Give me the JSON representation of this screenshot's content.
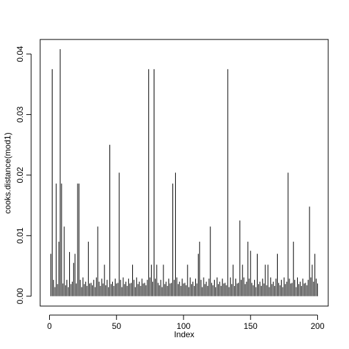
{
  "chart_data": {
    "type": "bar",
    "x_label": "Index",
    "y_label": "cooks.distance(mod1)",
    "color": "#000000",
    "x": [
      1,
      2,
      3,
      4,
      5,
      6,
      7,
      8,
      9,
      10,
      11,
      12,
      13,
      14,
      15,
      16,
      17,
      18,
      19,
      20,
      21,
      22,
      23,
      24,
      25,
      26,
      27,
      28,
      29,
      30,
      31,
      32,
      33,
      34,
      35,
      36,
      37,
      38,
      39,
      40,
      41,
      42,
      43,
      44,
      45,
      46,
      47,
      48,
      49,
      50,
      51,
      52,
      53,
      54,
      55,
      56,
      57,
      58,
      59,
      60,
      61,
      62,
      63,
      64,
      65,
      66,
      67,
      68,
      69,
      70,
      71,
      72,
      73,
      74,
      75,
      76,
      77,
      78,
      79,
      80,
      81,
      82,
      83,
      84,
      85,
      86,
      87,
      88,
      89,
      90,
      91,
      92,
      93,
      94,
      95,
      96,
      97,
      98,
      99,
      100,
      101,
      102,
      103,
      104,
      105,
      106,
      107,
      108,
      109,
      110,
      111,
      112,
      113,
      114,
      115,
      116,
      117,
      118,
      119,
      120,
      121,
      122,
      123,
      124,
      125,
      126,
      127,
      128,
      129,
      130,
      131,
      132,
      133,
      134,
      135,
      136,
      137,
      138,
      139,
      140,
      141,
      142,
      143,
      144,
      145,
      146,
      147,
      148,
      149,
      150,
      151,
      152,
      153,
      154,
      155,
      156,
      157,
      158,
      159,
      160,
      161,
      162,
      163,
      164,
      165,
      166,
      167,
      168,
      169,
      170,
      171,
      172,
      173,
      174,
      175,
      176,
      177,
      178,
      179,
      180,
      181,
      182,
      183,
      184,
      185,
      186,
      187,
      188,
      189,
      190,
      191,
      192,
      193,
      194,
      195,
      196,
      197,
      198,
      199,
      200
    ],
    "values": [
      0.007,
      0.0375,
      0.0027,
      0.0015,
      0.0186,
      0.002,
      0.009,
      0.0408,
      0.0186,
      0.0021,
      0.0115,
      0.0018,
      0.0027,
      0.0015,
      0.0073,
      0.002,
      0.0024,
      0.0055,
      0.007,
      0.0021,
      0.0186,
      0.0186,
      0.0027,
      0.0015,
      0.0031,
      0.002,
      0.0024,
      0.0017,
      0.009,
      0.0021,
      0.0022,
      0.0018,
      0.0027,
      0.0015,
      0.0031,
      0.0115,
      0.0024,
      0.0017,
      0.0029,
      0.0021,
      0.0052,
      0.0018,
      0.0027,
      0.0015,
      0.025,
      0.002,
      0.0024,
      0.0017,
      0.0029,
      0.0021,
      0.0022,
      0.0204,
      0.0027,
      0.0015,
      0.0031,
      0.002,
      0.0024,
      0.0017,
      0.0029,
      0.0021,
      0.0022,
      0.0052,
      0.0027,
      0.0015,
      0.0031,
      0.002,
      0.0024,
      0.0017,
      0.0029,
      0.0021,
      0.0022,
      0.0018,
      0.0027,
      0.0375,
      0.0031,
      0.0052,
      0.0024,
      0.0375,
      0.0029,
      0.0052,
      0.0022,
      0.0018,
      0.0027,
      0.0015,
      0.0052,
      0.002,
      0.0024,
      0.0017,
      0.0029,
      0.0021,
      0.0022,
      0.0186,
      0.0027,
      0.0204,
      0.0031,
      0.002,
      0.0024,
      0.0017,
      0.0029,
      0.0021,
      0.0022,
      0.0018,
      0.0052,
      0.0015,
      0.0031,
      0.002,
      0.0024,
      0.0017,
      0.0029,
      0.0021,
      0.007,
      0.009,
      0.0027,
      0.0015,
      0.0031,
      0.002,
      0.0024,
      0.0017,
      0.0029,
      0.0115,
      0.0022,
      0.0018,
      0.0027,
      0.0015,
      0.0031,
      0.002,
      0.0024,
      0.0017,
      0.0029,
      0.0021,
      0.0022,
      0.0018,
      0.0375,
      0.0015,
      0.0031,
      0.002,
      0.0052,
      0.0017,
      0.0029,
      0.0021,
      0.0022,
      0.0125,
      0.0027,
      0.0052,
      0.0031,
      0.002,
      0.0024,
      0.009,
      0.0029,
      0.0075,
      0.0022,
      0.0018,
      0.0027,
      0.0015,
      0.007,
      0.002,
      0.0024,
      0.0017,
      0.0029,
      0.0021,
      0.0052,
      0.0018,
      0.0052,
      0.0015,
      0.0031,
      0.002,
      0.0024,
      0.0017,
      0.0029,
      0.007,
      0.0022,
      0.0018,
      0.0027,
      0.0015,
      0.0031,
      0.002,
      0.0024,
      0.0204,
      0.0029,
      0.0021,
      0.0022,
      0.009,
      0.0027,
      0.0015,
      0.0031,
      0.002,
      0.0024,
      0.0017,
      0.0029,
      0.0021,
      0.0022,
      0.0018,
      0.0027,
      0.0148,
      0.0031,
      0.0052,
      0.0024,
      0.007,
      0.0029,
      0.0021
    ],
    "xlim": [
      -6.96,
      207.96
    ],
    "xticks": [
      0,
      50,
      100,
      150,
      200
    ],
    "ylim": [
      -0.00163,
      0.0424
    ],
    "yticks": [
      {
        "value": 0,
        "label": "0.00"
      },
      {
        "value": 0.01,
        "label": "0.01"
      },
      {
        "value": 0.02,
        "label": "0.02"
      },
      {
        "value": 0.03,
        "label": "0.03"
      },
      {
        "value": 0.04,
        "label": "0.04"
      }
    ]
  }
}
